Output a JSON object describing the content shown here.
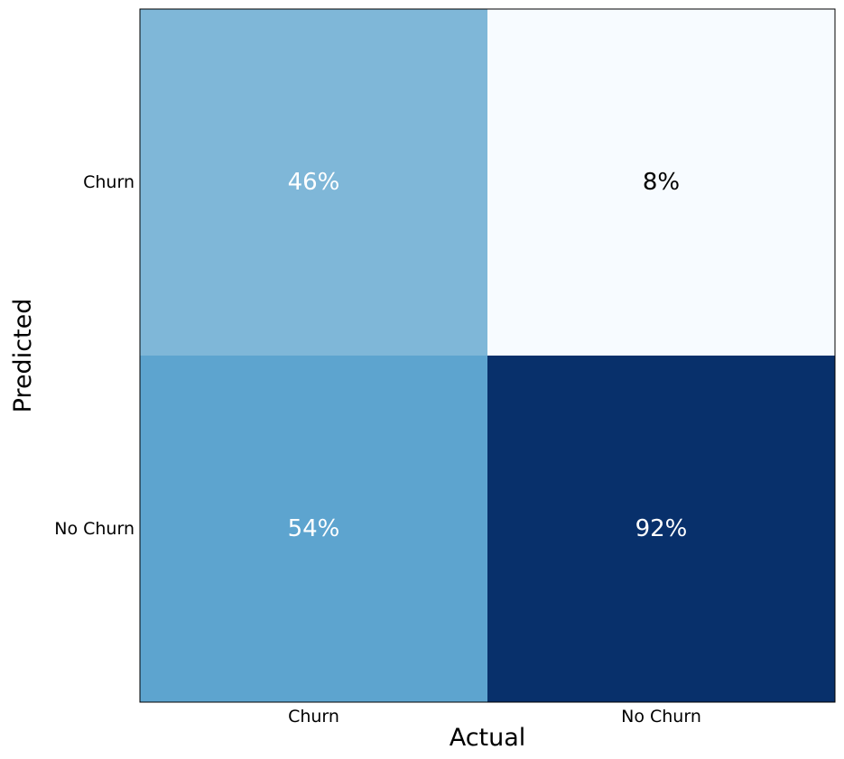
{
  "chart_data": {
    "type": "heatmap",
    "x_categories": [
      "Churn",
      "No Churn"
    ],
    "y_categories": [
      "Churn",
      "No Churn"
    ],
    "values": [
      [
        46,
        8
      ],
      [
        54,
        92
      ]
    ],
    "cell_labels": [
      [
        "46%",
        "8%"
      ],
      [
        "54%",
        "92%"
      ]
    ],
    "xlabel": "Actual",
    "ylabel": "Predicted",
    "colormap": "Blues",
    "cell_colors": [
      [
        "#7fb7d8",
        "#f7fbff"
      ],
      [
        "#5da4cf",
        "#08306b"
      ]
    ],
    "text_colors": [
      [
        "#ffffff",
        "#000000"
      ],
      [
        "#ffffff",
        "#ffffff"
      ]
    ],
    "grid": false
  }
}
